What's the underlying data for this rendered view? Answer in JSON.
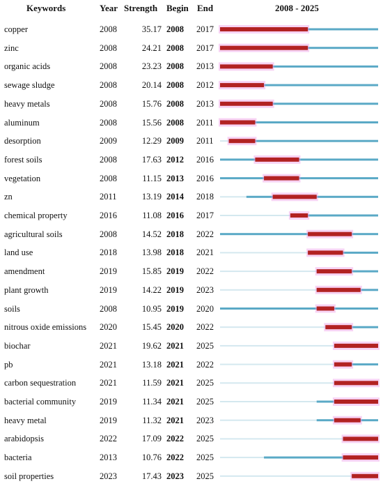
{
  "headers": {
    "keywords": "Keywords",
    "year": "Year",
    "strength": "Strength",
    "begin": "Begin",
    "end": "End",
    "range": "2008 - 2025"
  },
  "chart_data": {
    "type": "table",
    "range_start": 2008,
    "range_end": 2025,
    "colors": {
      "timeline": "#5aa9c6",
      "burst": "#b22222",
      "highlight": "#ee9ee6"
    },
    "rows": [
      {
        "keyword": "copper",
        "year": "2008",
        "strength": "35.17",
        "begin": "2008",
        "end": "2017"
      },
      {
        "keyword": "zinc",
        "year": "2008",
        "strength": "24.21",
        "begin": "2008",
        "end": "2017"
      },
      {
        "keyword": "organic acids",
        "year": "2008",
        "strength": "23.23",
        "begin": "2008",
        "end": "2013"
      },
      {
        "keyword": "sewage sludge",
        "year": "2008",
        "strength": "20.14",
        "begin": "2008",
        "end": "2012"
      },
      {
        "keyword": "heavy metals",
        "year": "2008",
        "strength": "15.76",
        "begin": "2008",
        "end": "2013"
      },
      {
        "keyword": "aluminum",
        "year": "2008",
        "strength": "15.56",
        "begin": "2008",
        "end": "2011"
      },
      {
        "keyword": "desorption",
        "year": "2009",
        "strength": "12.29",
        "begin": "2009",
        "end": "2011"
      },
      {
        "keyword": "forest soils",
        "year": "2008",
        "strength": "17.63",
        "begin": "2012",
        "end": "2016"
      },
      {
        "keyword": "vegetation",
        "year": "2008",
        "strength": "11.15",
        "begin": "2013",
        "end": "2016"
      },
      {
        "keyword": "zn",
        "year": "2011",
        "strength": "13.19",
        "begin": "2014",
        "end": "2018"
      },
      {
        "keyword": "chemical property",
        "year": "2016",
        "strength": "11.08",
        "begin": "2016",
        "end": "2017"
      },
      {
        "keyword": "agricultural soils",
        "year": "2008",
        "strength": "14.52",
        "begin": "2018",
        "end": "2022"
      },
      {
        "keyword": "land use",
        "year": "2018",
        "strength": "13.98",
        "begin": "2018",
        "end": "2021"
      },
      {
        "keyword": "amendment",
        "year": "2019",
        "strength": "15.85",
        "begin": "2019",
        "end": "2022"
      },
      {
        "keyword": "plant growth",
        "year": "2019",
        "strength": "14.22",
        "begin": "2019",
        "end": "2023"
      },
      {
        "keyword": "soils",
        "year": "2008",
        "strength": "10.95",
        "begin": "2019",
        "end": "2020"
      },
      {
        "keyword": "nitrous oxide emissions",
        "year": "2020",
        "strength": "15.45",
        "begin": "2020",
        "end": "2022"
      },
      {
        "keyword": "biochar",
        "year": "2021",
        "strength": "19.62",
        "begin": "2021",
        "end": "2025"
      },
      {
        "keyword": "pb",
        "year": "2021",
        "strength": "13.18",
        "begin": "2021",
        "end": "2022"
      },
      {
        "keyword": "carbon sequestration",
        "year": "2021",
        "strength": "11.59",
        "begin": "2021",
        "end": "2025"
      },
      {
        "keyword": "bacterial community",
        "year": "2019",
        "strength": "11.34",
        "begin": "2021",
        "end": "2025"
      },
      {
        "keyword": "heavy metal",
        "year": "2019",
        "strength": "11.32",
        "begin": "2021",
        "end": "2023"
      },
      {
        "keyword": "arabidopsis",
        "year": "2022",
        "strength": "17.09",
        "begin": "2022",
        "end": "2025"
      },
      {
        "keyword": "bacteria",
        "year": "2013",
        "strength": "10.76",
        "begin": "2022",
        "end": "2025"
      },
      {
        "keyword": "soil properties",
        "year": "2023",
        "strength": "17.43",
        "begin": "2023",
        "end": "2025"
      }
    ]
  }
}
